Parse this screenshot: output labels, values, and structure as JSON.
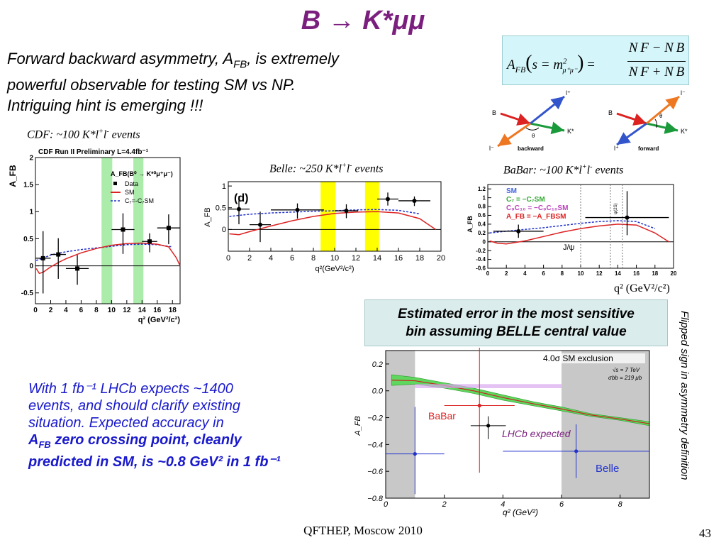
{
  "slide": {
    "title": "B → K*μμ",
    "intro_line1": "Forward backward asymmetry, A",
    "intro_sub": "FB",
    "intro_line1b": ", is extremely",
    "intro_line2": "powerful observable for testing SM vs NP.",
    "intro_line3": "Intriguing hint is emerging !!!",
    "footer": "QFTHEP, Moscow 2010",
    "page_number": "43"
  },
  "formula": {
    "lhs": "A",
    "lhs_sub": "FB",
    "arg": "s = m",
    "arg_sup": "2",
    "arg_sub": "μ⁺μ⁻",
    "numerator": "N F − N B",
    "denominator": "N F + N B"
  },
  "diagrams": {
    "left_label": "backward",
    "right_label": "forward",
    "B": "B",
    "K": "K*",
    "lplus": "l⁺",
    "lminus": "l⁻",
    "theta": "θ"
  },
  "captions": {
    "cdf": "CDF: ~100 K*l",
    "cdf_sup1": "+",
    "cdf_mid": "l",
    "cdf_sup2": "-",
    "cdf_end": " events",
    "belle": "Belle: ~250 K*l",
    "belle_sup1": "+",
    "belle_mid": "l",
    "belle_sup2": "-",
    "belle_end": " events",
    "babar": "BaBar: ~100 K*l",
    "babar_sup1": "+",
    "babar_mid": "l",
    "babar_sup2": "-",
    "babar_end": " events",
    "babar_xaxis": "q² (GeV²/c²)"
  },
  "estimate_box": {
    "line1": "Estimated error in the most sensitive",
    "line2": "bin assuming BELLE central value"
  },
  "vertical_note": "Flipped sign in asymmetry definition",
  "bottom": {
    "line1": "With 1 fb⁻¹ LHCb expects ~1400",
    "line2": "events, and should clarify existing",
    "line3": "situation.  Expected accuracy in",
    "line4": "A",
    "line4_sub": "FB",
    "line4_rest": " zero crossing point, cleanly",
    "line5": "predicted in SM, is ~0.8 GeV² in 1 fb⁻¹"
  },
  "colors": {
    "title": "#7b1f7e",
    "bottom_text": "#1a1acc",
    "formula_bg": "#d4f6fa",
    "estimate_bg": "#dbecec",
    "cdf_band": "#33cc33",
    "belle_band": "#ffff00",
    "sm_red": "#dd2222",
    "np_blue": "#2233cc"
  },
  "chart_data": [
    {
      "type": "scatter",
      "title": "CDF Run II Preliminary L=4.4fb⁻¹",
      "xlabel": "q² (GeV²/c²)",
      "ylabel": "A_FB",
      "xlim": [
        0,
        19
      ],
      "ylim": [
        -0.7,
        2
      ],
      "xticks": [
        "0",
        "2",
        "4",
        "6",
        "8",
        "10",
        "12",
        "14",
        "16",
        "18"
      ],
      "yticks": [
        "-0.5",
        "0",
        "0.5",
        "1",
        "1.5",
        "2"
      ],
      "legend": {
        "header": "A_FB(B⁰ → K*⁰μ⁺μ⁻)",
        "entries": [
          "Data",
          "SM",
          "C₇=-C₇SM"
        ]
      },
      "points": [
        {
          "x": 1,
          "y": 0.14,
          "xerr": 1,
          "yerr_lo": 0.65,
          "yerr_hi": 0.5
        },
        {
          "x": 3,
          "y": 0.21,
          "xerr": 1,
          "yerr_lo": 0.45,
          "yerr_hi": 0.3
        },
        {
          "x": 5.5,
          "y": -0.05,
          "xerr": 1.5,
          "yerr_lo": 0.3,
          "yerr_hi": 0.25
        },
        {
          "x": 11.5,
          "y": 0.67,
          "xerr": 1.5,
          "yerr_lo": 0.45,
          "yerr_hi": 0.3
        },
        {
          "x": 15,
          "y": 0.45,
          "xerr": 1,
          "yerr_lo": 0.2,
          "yerr_hi": 0.15
        },
        {
          "x": 17.5,
          "y": 0.7,
          "xerr": 1.5,
          "yerr_lo": 0.3,
          "yerr_hi": 0.25
        }
      ],
      "sm_curve": [
        [
          0.1,
          -0.05
        ],
        [
          0.5,
          -0.14
        ],
        [
          1,
          -0.12
        ],
        [
          2,
          -0.02
        ],
        [
          3,
          0.06
        ],
        [
          4,
          0.13
        ],
        [
          6,
          0.24
        ],
        [
          8,
          0.32
        ],
        [
          10,
          0.38
        ],
        [
          12,
          0.41
        ],
        [
          14,
          0.42
        ],
        [
          16,
          0.4
        ],
        [
          17.5,
          0.35
        ],
        [
          18.5,
          0.15
        ],
        [
          19,
          0
        ]
      ],
      "np_curve": [
        [
          0.1,
          0.1
        ],
        [
          1,
          0.14
        ],
        [
          2,
          0.2
        ],
        [
          4,
          0.26
        ],
        [
          6,
          0.3
        ],
        [
          8,
          0.33
        ],
        [
          10,
          0.36
        ],
        [
          12,
          0.39
        ],
        [
          14,
          0.4
        ],
        [
          16,
          0.39
        ],
        [
          18,
          0.35
        ]
      ],
      "bands": [
        [
          8.68,
          10.09
        ],
        [
          12.86,
          14.18
        ]
      ]
    },
    {
      "type": "scatter",
      "title": "(d)",
      "xlabel": "q²(GeV²/c²)",
      "ylabel": "A_FB",
      "xlim": [
        0,
        20
      ],
      "ylim": [
        -0.5,
        1.1
      ],
      "xticks": [
        "0",
        "2",
        "4",
        "6",
        "8",
        "10",
        "12",
        "14",
        "16",
        "18",
        "20"
      ],
      "yticks": [
        "0",
        "0.5",
        "1"
      ],
      "points": [
        {
          "x": 1,
          "y": 0.47,
          "xerr": 1,
          "yerr_lo": 0.35,
          "yerr_hi": 0.3
        },
        {
          "x": 3,
          "y": 0.11,
          "xerr": 1,
          "yerr_lo": 0.4,
          "yerr_hi": 0.3
        },
        {
          "x": 6.5,
          "y": 0.45,
          "xerr": 2.5,
          "yerr_lo": 0.2,
          "yerr_hi": 0.15
        },
        {
          "x": 11.1,
          "y": 0.43,
          "xerr": 1.1,
          "yerr_lo": 0.17,
          "yerr_hi": 0.15
        },
        {
          "x": 15,
          "y": 0.7,
          "xerr": 1,
          "yerr_lo": 0.15,
          "yerr_hi": 0.15
        },
        {
          "x": 17.5,
          "y": 0.66,
          "xerr": 1.5,
          "yerr_lo": 0.12,
          "yerr_hi": 0.1
        }
      ],
      "sm_curve": [
        [
          0.1,
          -0.1
        ],
        [
          1,
          -0.12
        ],
        [
          2,
          -0.05
        ],
        [
          4,
          0.08
        ],
        [
          6,
          0.2
        ],
        [
          8,
          0.3
        ],
        [
          10,
          0.37
        ],
        [
          12,
          0.4
        ],
        [
          14,
          0.41
        ],
        [
          16,
          0.38
        ],
        [
          18,
          0.25
        ],
        [
          19.5,
          0
        ]
      ],
      "np_curve": [
        [
          0.1,
          0.3
        ],
        [
          2,
          0.35
        ],
        [
          4,
          0.38
        ],
        [
          6,
          0.4
        ],
        [
          8,
          0.42
        ],
        [
          10,
          0.43
        ],
        [
          12,
          0.45
        ],
        [
          14,
          0.46
        ],
        [
          16,
          0.44
        ],
        [
          18,
          0.36
        ]
      ],
      "bands": [
        [
          8.68,
          10.09
        ],
        [
          12.86,
          14.18
        ]
      ]
    },
    {
      "type": "line",
      "xlim": [
        0,
        20
      ],
      "ylim": [
        -0.6,
        1.3
      ],
      "xticks": [
        "0",
        "2",
        "4",
        "6",
        "8",
        "10",
        "12",
        "14",
        "16",
        "18",
        "20"
      ],
      "yticks": [
        "-0.6",
        "-0.4",
        "-0.2",
        "0",
        "0.2",
        "0.4",
        "0.6",
        "0.8",
        "1",
        "1.2"
      ],
      "ylabel": "A_FB",
      "legend": {
        "entries": [
          "SM",
          "C₇ = −C₇SM",
          "C₉C₁₀ = −C₉C₁₀SM",
          "A_FB = −A_FBSM"
        ]
      },
      "annotations": [
        "J/ψ",
        "ψ(2S)"
      ],
      "points": [
        {
          "x": 3.3,
          "y": 0.24,
          "xerr": 2.7,
          "yerr_lo": 0.15,
          "yerr_hi": 0.15
        },
        {
          "x": 15,
          "y": 0.55,
          "xerr": 4.5,
          "yerr_lo": 0.4,
          "yerr_hi": 0.6
        }
      ],
      "sm_curve": [
        [
          0.2,
          0.02
        ],
        [
          1,
          -0.03
        ],
        [
          2,
          -0.05
        ],
        [
          4,
          0.02
        ],
        [
          6,
          0.12
        ],
        [
          8,
          0.22
        ],
        [
          10,
          0.3
        ],
        [
          12,
          0.36
        ],
        [
          14,
          0.4
        ],
        [
          16,
          0.38
        ],
        [
          18,
          0.2
        ],
        [
          19.5,
          0
        ]
      ],
      "np_curve": [
        [
          0.2,
          0.2
        ],
        [
          2,
          0.24
        ],
        [
          4,
          0.28
        ],
        [
          6,
          0.32
        ],
        [
          8,
          0.37
        ],
        [
          10,
          0.42
        ],
        [
          12,
          0.46
        ],
        [
          14,
          0.48
        ],
        [
          16,
          0.46
        ],
        [
          18,
          0.3
        ]
      ]
    },
    {
      "type": "scatter",
      "title": "4.0σ SM exclusion",
      "subtitle": "√s = 7 TeV",
      "subtitle2": "σbb = 219 μb",
      "xlabel": "q² (GeV²)",
      "ylabel": "A_FB",
      "xlim": [
        0,
        9
      ],
      "ylim": [
        -0.8,
        0.3
      ],
      "xticks": [
        "0",
        "2",
        "4",
        "6",
        "8"
      ],
      "yticks": [
        "−0.8",
        "−0.6",
        "−0.4",
        "−0.2",
        "0.0",
        "0.2"
      ],
      "labels": [
        "BaBar",
        "LHCb expected",
        "Belle"
      ],
      "points": [
        {
          "name": "Belle",
          "x": 1,
          "y": -0.47,
          "xerr": 1,
          "yerr_lo": 0.3,
          "yerr_hi": 0.35
        },
        {
          "name": "BaBar",
          "x": 3.2,
          "y": -0.11,
          "xerr": 1.2,
          "yerr_lo": 0.5,
          "yerr_hi": 0.45
        },
        {
          "name": "LHCb",
          "x": 3.5,
          "y": -0.26,
          "xerr": 0.6,
          "yerr_lo": 0.1,
          "yerr_hi": 0.07
        },
        {
          "name": "Belle",
          "x": 6.5,
          "y": -0.45,
          "xerr": 2.5,
          "yerr_lo": 0.2,
          "yerr_hi": 0.2
        }
      ],
      "shaded": [
        [
          0,
          1
        ],
        [
          6,
          9
        ]
      ]
    }
  ]
}
